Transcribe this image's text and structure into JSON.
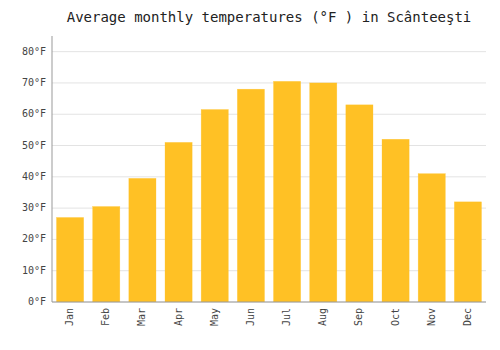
{
  "chart_data": {
    "type": "bar",
    "title": "Average monthly temperatures (°F ) in Scânteeşti",
    "categories": [
      "Jan",
      "Feb",
      "Mar",
      "Apr",
      "May",
      "Jun",
      "Jul",
      "Aug",
      "Sep",
      "Oct",
      "Nov",
      "Dec"
    ],
    "values": [
      27,
      30.5,
      39.5,
      51,
      61.5,
      68,
      70.5,
      70,
      63,
      52,
      41,
      32
    ],
    "color": "#FFC125",
    "ylim": [
      0,
      85
    ],
    "yticks": [
      {
        "value": 0,
        "label": "0°F"
      },
      {
        "value": 10,
        "label": "10°F"
      },
      {
        "value": 20,
        "label": "20°F"
      },
      {
        "value": 30,
        "label": "30°F"
      },
      {
        "value": 40,
        "label": "40°F"
      },
      {
        "value": 50,
        "label": "50°F"
      },
      {
        "value": 60,
        "label": "60°F"
      },
      {
        "value": 70,
        "label": "70°F"
      },
      {
        "value": 80,
        "label": "80°F"
      }
    ],
    "grid": true
  }
}
